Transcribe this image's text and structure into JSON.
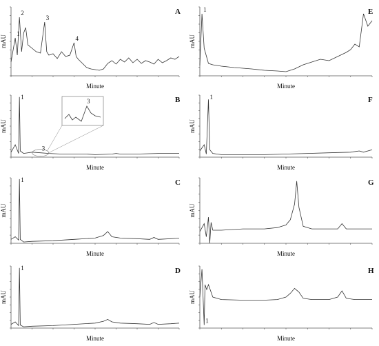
{
  "figure": {
    "panels": [
      {
        "id": "A",
        "letter": "A",
        "xlabel": "Minute",
        "ylabel": "mAU",
        "peaks": [
          "1",
          "2",
          "3",
          "4"
        ]
      },
      {
        "id": "B",
        "letter": "B",
        "xlabel": "Minute",
        "ylabel": "mAU",
        "peaks": [
          "1",
          "3"
        ],
        "inset_peak": "3"
      },
      {
        "id": "C",
        "letter": "C",
        "xlabel": "Minute",
        "ylabel": "mAU",
        "peaks": [
          "1"
        ]
      },
      {
        "id": "D",
        "letter": "D",
        "xlabel": "Minute",
        "ylabel": "mAU",
        "peaks": [
          "1"
        ]
      },
      {
        "id": "E",
        "letter": "E",
        "xlabel": "Minute",
        "ylabel": "mAU",
        "peaks": [
          "1"
        ]
      },
      {
        "id": "F",
        "letter": "F",
        "xlabel": "Minute",
        "ylabel": "mAU",
        "peaks": [
          "1"
        ]
      },
      {
        "id": "G",
        "letter": "G",
        "xlabel": "Minute",
        "ylabel": "mAU",
        "peaks": []
      },
      {
        "id": "H",
        "letter": "H",
        "xlabel": "Minute",
        "ylabel": "mAU",
        "peaks": [
          "1"
        ]
      }
    ]
  },
  "chart_data": [
    {
      "panel": "A",
      "type": "line",
      "xlim": [
        0,
        40
      ],
      "points": [
        [
          0,
          0.2
        ],
        [
          1,
          0.55
        ],
        [
          1.5,
          0.3
        ],
        [
          2,
          0.85
        ],
        [
          2.5,
          0.35
        ],
        [
          3,
          0.62
        ],
        [
          3.5,
          0.7
        ],
        [
          4,
          0.45
        ],
        [
          5,
          0.4
        ],
        [
          6,
          0.35
        ],
        [
          7,
          0.33
        ],
        [
          8,
          0.78
        ],
        [
          8.5,
          0.35
        ],
        [
          9,
          0.3
        ],
        [
          10,
          0.32
        ],
        [
          11,
          0.25
        ],
        [
          12,
          0.35
        ],
        [
          13,
          0.28
        ],
        [
          14,
          0.3
        ],
        [
          15,
          0.48
        ],
        [
          15.5,
          0.28
        ],
        [
          16,
          0.24
        ],
        [
          17,
          0.18
        ],
        [
          18,
          0.12
        ],
        [
          19,
          0.1
        ],
        [
          20,
          0.09
        ],
        [
          21,
          0.08
        ],
        [
          22,
          0.1
        ],
        [
          23,
          0.18
        ],
        [
          24,
          0.22
        ],
        [
          25,
          0.17
        ],
        [
          26,
          0.24
        ],
        [
          27,
          0.2
        ],
        [
          28,
          0.26
        ],
        [
          29,
          0.19
        ],
        [
          30,
          0.24
        ],
        [
          31,
          0.18
        ],
        [
          32,
          0.22
        ],
        [
          33,
          0.2
        ],
        [
          34,
          0.17
        ],
        [
          35,
          0.24
        ],
        [
          36,
          0.19
        ],
        [
          37,
          0.22
        ],
        [
          38,
          0.26
        ],
        [
          39,
          0.24
        ],
        [
          40,
          0.28
        ]
      ],
      "peak_labels": [
        {
          "label": "1",
          "x": 1
        },
        {
          "label": "2",
          "x": 2
        },
        {
          "label": "3",
          "x": 8
        },
        {
          "label": "4",
          "x": 15
        }
      ]
    },
    {
      "panel": "B",
      "type": "line",
      "xlim": [
        0,
        40
      ],
      "points": [
        [
          0,
          0.08
        ],
        [
          1,
          0.2
        ],
        [
          1.8,
          0.06
        ],
        [
          2,
          0.97
        ],
        [
          2.2,
          0.1
        ],
        [
          3,
          0.06
        ],
        [
          5,
          0.08
        ],
        [
          7,
          0.07
        ],
        [
          9,
          0.06
        ],
        [
          12,
          0.05
        ],
        [
          15,
          0.05
        ],
        [
          18,
          0.05
        ],
        [
          20,
          0.04
        ],
        [
          24,
          0.05
        ],
        [
          25,
          0.06
        ],
        [
          26,
          0.05
        ],
        [
          30,
          0.05
        ],
        [
          35,
          0.06
        ],
        [
          40,
          0.06
        ]
      ],
      "peak_labels": [
        {
          "label": "1",
          "x": 2
        },
        {
          "label": "3",
          "x": 7
        }
      ]
    },
    {
      "panel": "C",
      "type": "line",
      "xlim": [
        0,
        40
      ],
      "points": [
        [
          0,
          0.06
        ],
        [
          1,
          0.1
        ],
        [
          1.8,
          0.05
        ],
        [
          2,
          0.98
        ],
        [
          2.2,
          0.06
        ],
        [
          3,
          0.02
        ],
        [
          5,
          0.03
        ],
        [
          10,
          0.04
        ],
        [
          15,
          0.06
        ],
        [
          20,
          0.08
        ],
        [
          22,
          0.12
        ],
        [
          23,
          0.18
        ],
        [
          24,
          0.1
        ],
        [
          26,
          0.08
        ],
        [
          30,
          0.07
        ],
        [
          33,
          0.06
        ],
        [
          34,
          0.09
        ],
        [
          35,
          0.06
        ],
        [
          38,
          0.07
        ],
        [
          40,
          0.08
        ]
      ],
      "peak_labels": [
        {
          "label": "1",
          "x": 2
        }
      ]
    },
    {
      "panel": "D",
      "type": "line",
      "xlim": [
        0,
        40
      ],
      "points": [
        [
          0,
          0.06
        ],
        [
          1,
          0.1
        ],
        [
          1.8,
          0.04
        ],
        [
          2,
          0.97
        ],
        [
          2.2,
          0.05
        ],
        [
          3,
          0.02
        ],
        [
          5,
          0.03
        ],
        [
          10,
          0.04
        ],
        [
          15,
          0.06
        ],
        [
          20,
          0.08
        ],
        [
          22,
          0.11
        ],
        [
          23,
          0.14
        ],
        [
          24,
          0.1
        ],
        [
          26,
          0.08
        ],
        [
          30,
          0.07
        ],
        [
          33,
          0.06
        ],
        [
          34,
          0.09
        ],
        [
          35,
          0.06
        ],
        [
          38,
          0.07
        ],
        [
          40,
          0.08
        ]
      ],
      "peak_labels": [
        {
          "label": "1",
          "x": 2
        }
      ]
    },
    {
      "panel": "E",
      "type": "line",
      "xlim": [
        0,
        40
      ],
      "points": [
        [
          0,
          0.15
        ],
        [
          0.5,
          0.9
        ],
        [
          1,
          0.4
        ],
        [
          2,
          0.18
        ],
        [
          3,
          0.16
        ],
        [
          5,
          0.14
        ],
        [
          8,
          0.12
        ],
        [
          10,
          0.11
        ],
        [
          12,
          0.1
        ],
        [
          15,
          0.08
        ],
        [
          18,
          0.07
        ],
        [
          20,
          0.06
        ],
        [
          22,
          0.1
        ],
        [
          24,
          0.16
        ],
        [
          26,
          0.2
        ],
        [
          28,
          0.24
        ],
        [
          30,
          0.22
        ],
        [
          32,
          0.28
        ],
        [
          34,
          0.34
        ],
        [
          35,
          0.38
        ],
        [
          36,
          0.46
        ],
        [
          37,
          0.42
        ],
        [
          38,
          0.9
        ],
        [
          39,
          0.72
        ],
        [
          40,
          0.8
        ]
      ],
      "peak_labels": [
        {
          "label": "1",
          "x": 0.5
        }
      ]
    },
    {
      "panel": "F",
      "type": "line",
      "xlim": [
        0,
        40
      ],
      "points": [
        [
          0,
          0.1
        ],
        [
          1,
          0.2
        ],
        [
          1.5,
          0.05
        ],
        [
          2,
          0.93
        ],
        [
          2.3,
          0.12
        ],
        [
          3,
          0.06
        ],
        [
          5,
          0.04
        ],
        [
          10,
          0.04
        ],
        [
          15,
          0.04
        ],
        [
          20,
          0.05
        ],
        [
          25,
          0.06
        ],
        [
          30,
          0.07
        ],
        [
          35,
          0.08
        ],
        [
          37,
          0.1
        ],
        [
          38,
          0.08
        ],
        [
          40,
          0.12
        ]
      ],
      "peak_labels": [
        {
          "label": "1",
          "x": 2
        }
      ]
    },
    {
      "panel": "G",
      "type": "line",
      "xlim": [
        0,
        40
      ],
      "points": [
        [
          0,
          0.18
        ],
        [
          1,
          0.3
        ],
        [
          1.5,
          0.1
        ],
        [
          2,
          0.4
        ],
        [
          2.3,
          0.0
        ],
        [
          2.6,
          0.32
        ],
        [
          3,
          0.2
        ],
        [
          5,
          0.2
        ],
        [
          10,
          0.22
        ],
        [
          15,
          0.22
        ],
        [
          18,
          0.24
        ],
        [
          20,
          0.28
        ],
        [
          21,
          0.36
        ],
        [
          22,
          0.6
        ],
        [
          22.5,
          0.95
        ],
        [
          23,
          0.55
        ],
        [
          24,
          0.26
        ],
        [
          26,
          0.22
        ],
        [
          28,
          0.22
        ],
        [
          30,
          0.22
        ],
        [
          32,
          0.22
        ],
        [
          33,
          0.3
        ],
        [
          34,
          0.22
        ],
        [
          37,
          0.22
        ],
        [
          40,
          0.22
        ]
      ],
      "peak_labels": []
    },
    {
      "panel": "H",
      "type": "line",
      "xlim": [
        0,
        40
      ],
      "points": [
        [
          0,
          0.5
        ],
        [
          0.5,
          0.95
        ],
        [
          1,
          0.05
        ],
        [
          1.2,
          0.7
        ],
        [
          1.6,
          0.62
        ],
        [
          2,
          0.7
        ],
        [
          3,
          0.5
        ],
        [
          5,
          0.46
        ],
        [
          10,
          0.45
        ],
        [
          15,
          0.45
        ],
        [
          18,
          0.46
        ],
        [
          20,
          0.5
        ],
        [
          21,
          0.56
        ],
        [
          22,
          0.64
        ],
        [
          23,
          0.58
        ],
        [
          24,
          0.48
        ],
        [
          26,
          0.46
        ],
        [
          30,
          0.46
        ],
        [
          32,
          0.5
        ],
        [
          33,
          0.6
        ],
        [
          34,
          0.48
        ],
        [
          36,
          0.46
        ],
        [
          40,
          0.46
        ]
      ],
      "peak_labels": [
        {
          "label": "1",
          "x": 1
        }
      ]
    }
  ]
}
